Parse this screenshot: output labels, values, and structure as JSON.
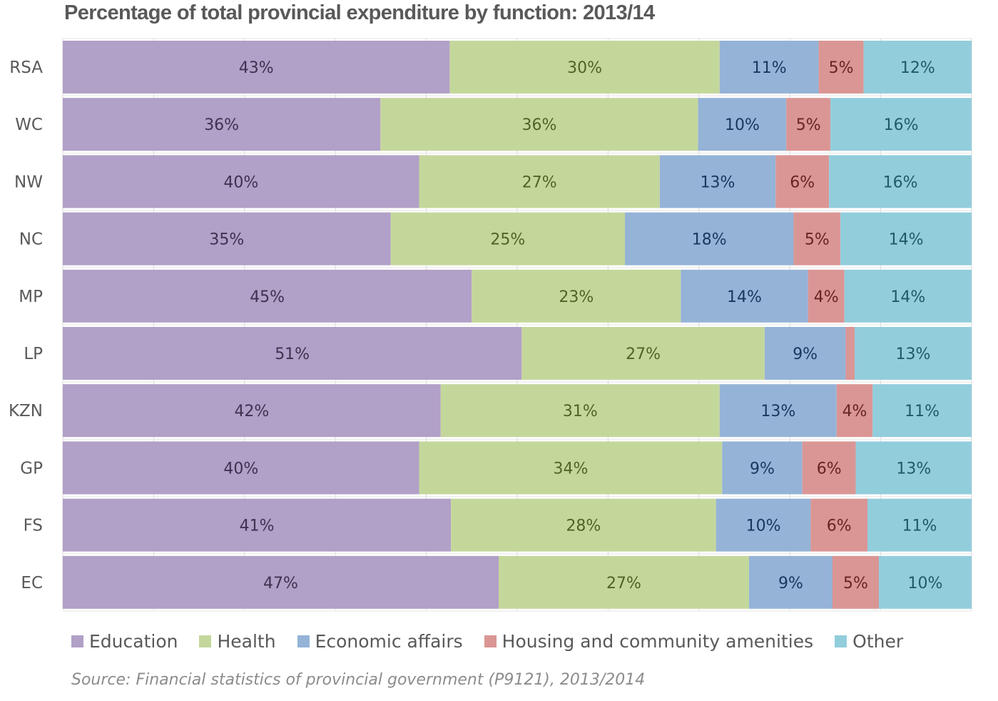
{
  "chart_data": {
    "type": "bar",
    "orientation": "horizontal",
    "stacked": "percent",
    "title": "Percentage of total provincial expenditure by function: 2013/14",
    "xlabel": "",
    "ylabel": "",
    "xlim": [
      0,
      100
    ],
    "grid": true,
    "gridline_step": 10,
    "legend_position": "bottom",
    "categories": [
      "RSA",
      "WC",
      "NW",
      "NC",
      "MP",
      "LP",
      "KZN",
      "GP",
      "FS",
      "EC"
    ],
    "series": [
      {
        "name": "Education",
        "color": "#b1a0c7",
        "label_color": "#3f3151",
        "values": [
          43,
          36,
          40,
          35,
          45,
          51,
          42,
          40,
          41,
          47
        ]
      },
      {
        "name": "Health",
        "color": "#c4d79b",
        "label_color": "#4f6228",
        "values": [
          30,
          36,
          27,
          25,
          23,
          27,
          31,
          34,
          28,
          27
        ]
      },
      {
        "name": "Economic affairs",
        "color": "#95b3d7",
        "label_color": "#17375e",
        "values": [
          11,
          10,
          13,
          18,
          14,
          9,
          13,
          9,
          10,
          9
        ]
      },
      {
        "name": "Housing and community amenities",
        "color": "#da9694",
        "label_color": "#632523",
        "values": [
          5,
          5,
          6,
          5,
          4,
          1,
          4,
          6,
          6,
          5
        ],
        "hidden_labels": [
          "LP"
        ]
      },
      {
        "name": "Other",
        "color": "#92cddc",
        "label_color": "#215967",
        "values": [
          12,
          16,
          16,
          14,
          14,
          13,
          11,
          13,
          11,
          10
        ]
      }
    ],
    "source": "Source: Financial statistics of provincial government (P9121), 2013/2014"
  }
}
